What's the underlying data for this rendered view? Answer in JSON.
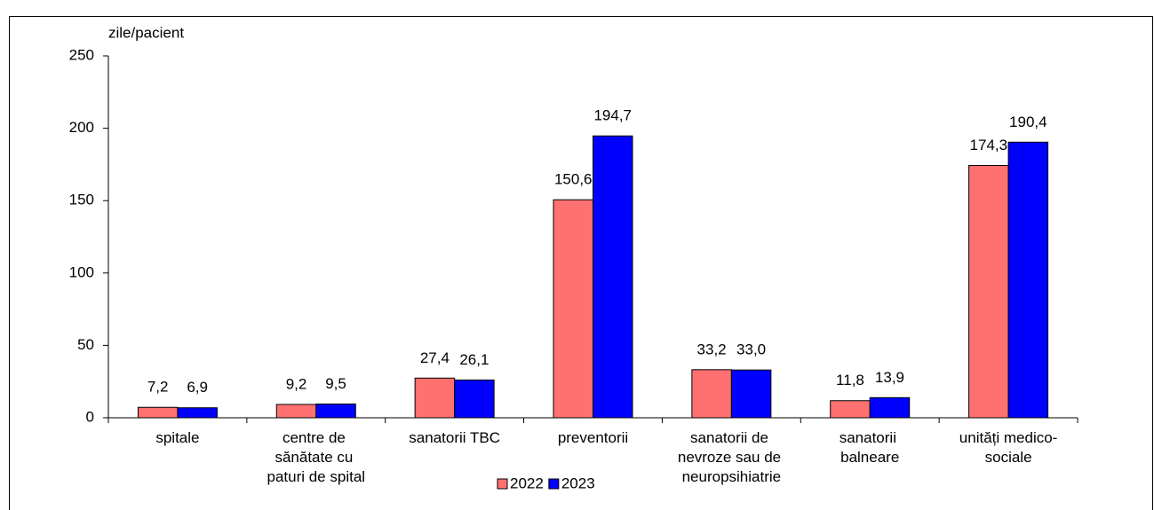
{
  "chart_data": {
    "type": "bar",
    "y_axis_label": "zile/pacient",
    "categories": [
      "spitale",
      "centre de sănătate cu paturi de spital",
      "sanatorii TBC",
      "preventorii",
      "sanatorii de nevroze sau de neuropsihiatrie",
      "sanatorii balneare",
      "unități medico-sociale"
    ],
    "series": [
      {
        "name": "2022",
        "color": "#ff7070",
        "values": [
          7.2,
          9.2,
          27.4,
          150.6,
          33.2,
          11.8,
          174.3
        ],
        "value_labels": [
          "7,2",
          "9,2",
          "27,4",
          "150,6",
          "33,2",
          "11,8",
          "174,3"
        ]
      },
      {
        "name": "2023",
        "color": "#0000ff",
        "values": [
          6.9,
          9.5,
          26.1,
          194.7,
          33.0,
          13.9,
          190.4
        ],
        "value_labels": [
          "6,9",
          "9,5",
          "26,1",
          "194,7",
          "33,0",
          "13,9",
          "190,4"
        ]
      }
    ],
    "ylim": [
      0,
      250
    ],
    "yticks": [
      0,
      50,
      100,
      150,
      200,
      250
    ],
    "grid": false,
    "legend": "bottom"
  }
}
